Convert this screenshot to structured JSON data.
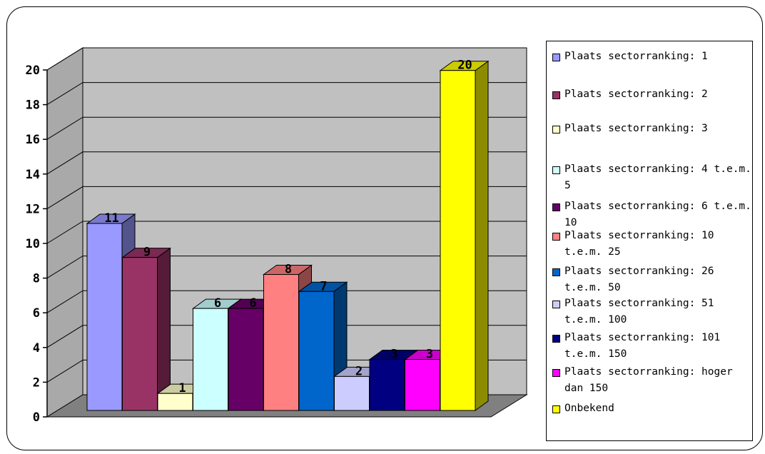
{
  "chart_data": {
    "type": "bar",
    "style": "3d-clustered-columns",
    "categories": [
      "Plaats sectorranking: 1",
      "Plaats sectorranking: 2",
      "Plaats sectorranking: 3",
      "Plaats sectorranking: 4 t.e.m. 5",
      "Plaats sectorranking: 6 t.e.m. 10",
      "Plaats sectorranking: 10 t.e.m. 25",
      "Plaats sectorranking: 26 t.e.m. 50",
      "Plaats sectorranking: 51 t.e.m. 100",
      "Plaats sectorranking: 101 t.e.m. 150",
      "Plaats sectorranking: hoger dan 150",
      "Onbekend"
    ],
    "values": [
      11,
      9,
      1,
      6,
      6,
      8,
      7,
      2,
      3,
      3,
      20
    ],
    "data_labels": [
      "11",
      "9",
      "1",
      "6",
      "6",
      "8",
      "7",
      "2",
      "3",
      "3",
      "20"
    ],
    "colors": [
      "#9999ff",
      "#993366",
      "#ffffcc",
      "#ccffff",
      "#660066",
      "#ff8080",
      "#0066cc",
      "#ccccff",
      "#000080",
      "#ff00ff",
      "#ffff00"
    ],
    "ylim": [
      0,
      20
    ],
    "yticks": [
      "0",
      "2",
      "4",
      "6",
      "8",
      "10",
      "12",
      "14",
      "16",
      "18",
      "20"
    ],
    "grid": true,
    "wall_color": "#c0c0c0",
    "floor_color": "#808080",
    "legend_position": "right"
  }
}
